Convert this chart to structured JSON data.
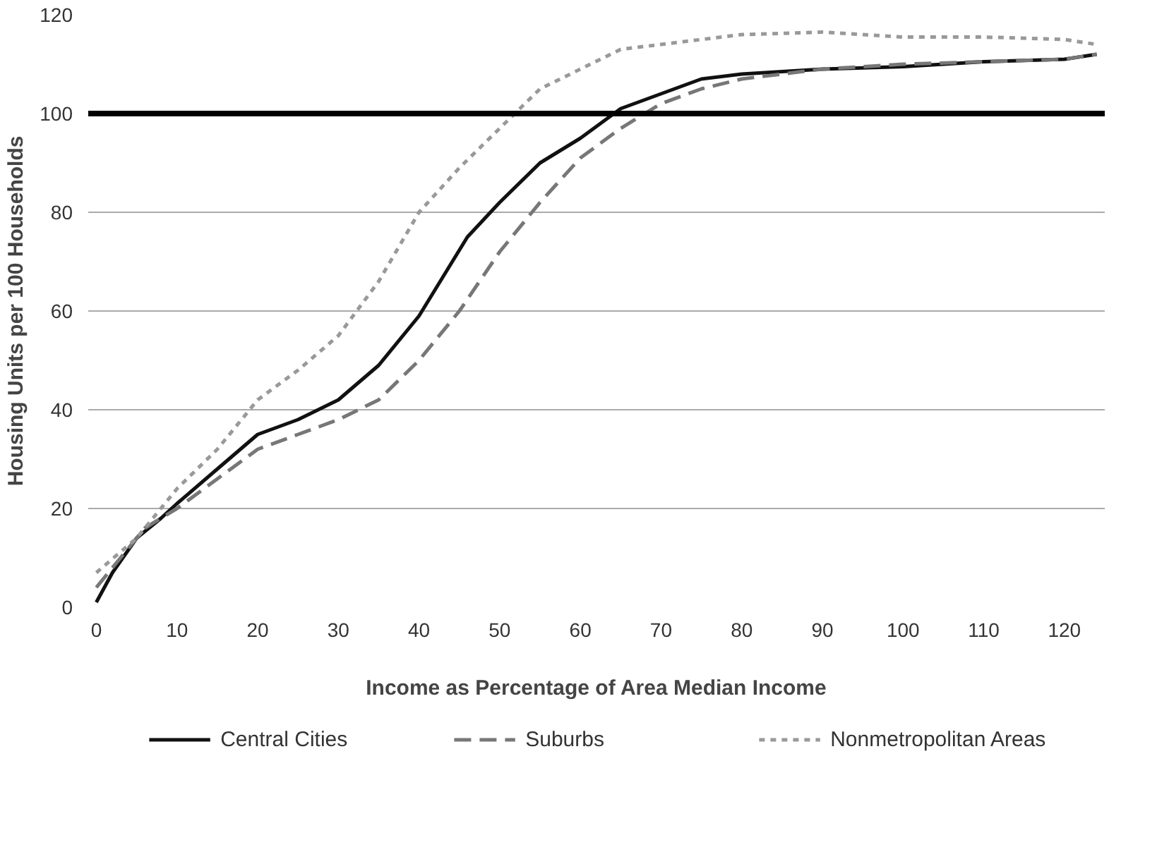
{
  "chart_data": {
    "type": "line",
    "xlabel": "Income as Percentage of Area Median Income",
    "ylabel": "Housing Units per 100 Households",
    "xlim": [
      -1,
      125
    ],
    "xticks": [
      0,
      10,
      20,
      30,
      40,
      50,
      60,
      70,
      80,
      90,
      100,
      110,
      120
    ],
    "ylim": [
      0,
      120
    ],
    "yticks": [
      0,
      20,
      40,
      60,
      80,
      100,
      120
    ],
    "grid": "y",
    "legend": "bottom",
    "ref_lines": [
      {
        "axis": "y",
        "value": 100,
        "label": null,
        "color": "#000000",
        "line_style": "solid"
      }
    ],
    "series": [
      {
        "name": "Central Cities",
        "color": "#111111",
        "line_style": "solid",
        "x": [
          0,
          2,
          5,
          8,
          10,
          15,
          20,
          25,
          30,
          35,
          40,
          43,
          46,
          50,
          55,
          60,
          65,
          70,
          75,
          80,
          85,
          90,
          100,
          110,
          120,
          124
        ],
        "values": [
          1,
          7,
          14,
          18,
          21,
          28,
          35,
          38,
          42,
          49,
          59,
          67,
          75,
          82,
          90,
          95,
          101,
          104,
          107,
          108,
          108.5,
          109,
          109.5,
          110.5,
          111,
          112
        ]
      },
      {
        "name": "Suburbs",
        "color": "#777777",
        "line_style": "dashed",
        "x": [
          0,
          3,
          6,
          10,
          15,
          20,
          25,
          30,
          35,
          40,
          45,
          50,
          55,
          60,
          65,
          70,
          75,
          80,
          90,
          100,
          110,
          120,
          124
        ],
        "values": [
          4,
          10,
          16,
          20,
          26,
          32,
          35,
          38,
          42,
          50,
          60,
          72,
          82,
          91,
          97,
          102,
          105,
          107,
          109,
          110,
          110.5,
          111,
          112
        ]
      },
      {
        "name": "Nonmetropolitan Areas",
        "color": "#999999",
        "line_style": "dotted",
        "x": [
          0,
          5,
          10,
          15,
          20,
          25,
          30,
          35,
          40,
          45,
          50,
          55,
          60,
          65,
          70,
          75,
          80,
          90,
          100,
          110,
          120,
          124
        ],
        "values": [
          7,
          14,
          24,
          32,
          42,
          48,
          55,
          66,
          80,
          89,
          97,
          105,
          109,
          113,
          114,
          115,
          116,
          116.5,
          115.5,
          115.5,
          115,
          114
        ]
      }
    ]
  }
}
